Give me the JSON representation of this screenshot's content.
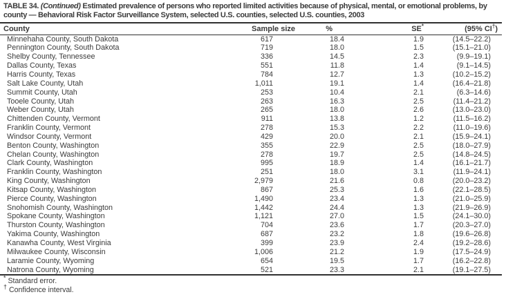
{
  "title": {
    "prefix": "TABLE 34. ",
    "continued": "(Continued)",
    "rest": " Estimated prevalence of persons who reported limited activities because of physical, mental, or emotional problems, by county — Behavioral Risk Factor Surveillance System, selected U.S. counties, selected U.S. counties, 2003"
  },
  "table": {
    "columns": {
      "county": "County",
      "sample_size": "Sample size",
      "percent": "%",
      "se_label": "SE",
      "se_sup": "*",
      "ci_pre": "(95% CI",
      "ci_sup": "†",
      "ci_post": ")"
    },
    "rows": [
      {
        "county": "Minnehaha County, South Dakota",
        "sample_size": "617",
        "percent": "18.4",
        "se": "1.9",
        "ci": "(14.5–22.2)"
      },
      {
        "county": "Pennington County, South Dakota",
        "sample_size": "719",
        "percent": "18.0",
        "se": "1.5",
        "ci": "(15.1–21.0)"
      },
      {
        "county": "Shelby County, Tennessee",
        "sample_size": "336",
        "percent": "14.5",
        "se": "2.3",
        "ci": "(9.9–19.1)"
      },
      {
        "county": "Dallas County, Texas",
        "sample_size": "551",
        "percent": "11.8",
        "se": "1.4",
        "ci": "(9.1–14.5)"
      },
      {
        "county": "Harris County, Texas",
        "sample_size": "784",
        "percent": "12.7",
        "se": "1.3",
        "ci": "(10.2–15.2)"
      },
      {
        "county": "Salt Lake County, Utah",
        "sample_size": "1,011",
        "percent": "19.1",
        "se": "1.4",
        "ci": "(16.4–21.8)"
      },
      {
        "county": "Summit County, Utah",
        "sample_size": "253",
        "percent": "10.4",
        "se": "2.1",
        "ci": "(6.3–14.6)"
      },
      {
        "county": "Tooele County, Utah",
        "sample_size": "263",
        "percent": "16.3",
        "se": "2.5",
        "ci": "(11.4–21.2)"
      },
      {
        "county": "Weber County, Utah",
        "sample_size": "265",
        "percent": "18.0",
        "se": "2.6",
        "ci": "(13.0–23.0)"
      },
      {
        "county": "Chittenden County, Vermont",
        "sample_size": "911",
        "percent": "13.8",
        "se": "1.2",
        "ci": "(11.5–16.2)"
      },
      {
        "county": "Franklin County, Vermont",
        "sample_size": "278",
        "percent": "15.3",
        "se": "2.2",
        "ci": "(11.0–19.6)"
      },
      {
        "county": "Windsor County, Vermont",
        "sample_size": "429",
        "percent": "20.0",
        "se": "2.1",
        "ci": "(15.9–24.1)"
      },
      {
        "county": "Benton County, Washington",
        "sample_size": "355",
        "percent": "22.9",
        "se": "2.5",
        "ci": "(18.0–27.9)"
      },
      {
        "county": "Chelan County, Washington",
        "sample_size": "278",
        "percent": "19.7",
        "se": "2.5",
        "ci": "(14.8–24.5)"
      },
      {
        "county": "Clark County, Washington",
        "sample_size": "995",
        "percent": "18.9",
        "se": "1.4",
        "ci": "(16.1–21.7)"
      },
      {
        "county": "Franklin County, Washington",
        "sample_size": "251",
        "percent": "18.0",
        "se": "3.1",
        "ci": "(11.9–24.1)"
      },
      {
        "county": "King County, Washington",
        "sample_size": "2,979",
        "percent": "21.6",
        "se": "0.8",
        "ci": "(20.0–23.2)"
      },
      {
        "county": "Kitsap County, Washington",
        "sample_size": "867",
        "percent": "25.3",
        "se": "1.6",
        "ci": "(22.1–28.5)"
      },
      {
        "county": "Pierce County, Washington",
        "sample_size": "1,490",
        "percent": "23.4",
        "se": "1.3",
        "ci": "(21.0–25.9)"
      },
      {
        "county": "Snohomish County, Washington",
        "sample_size": "1,442",
        "percent": "24.4",
        "se": "1.3",
        "ci": "(21.9–26.9)"
      },
      {
        "county": "Spokane County, Washington",
        "sample_size": "1,121",
        "percent": "27.0",
        "se": "1.5",
        "ci": "(24.1–30.0)"
      },
      {
        "county": "Thurston County, Washington",
        "sample_size": "704",
        "percent": "23.6",
        "se": "1.7",
        "ci": "(20.3–27.0)"
      },
      {
        "county": "Yakima County, Washington",
        "sample_size": "687",
        "percent": "23.2",
        "se": "1.8",
        "ci": "(19.6–26.8)"
      },
      {
        "county": "Kanawha County, West Virginia",
        "sample_size": "399",
        "percent": "23.9",
        "se": "2.4",
        "ci": "(19.2–28.6)"
      },
      {
        "county": "Milwaukee County, Wisconsin",
        "sample_size": "1,006",
        "percent": "21.2",
        "se": "1.9",
        "ci": "(17.5–24.9)"
      },
      {
        "county": "Laramie County, Wyoming",
        "sample_size": "654",
        "percent": "19.5",
        "se": "1.7",
        "ci": "(16.2–22.8)"
      },
      {
        "county": "Natrona County, Wyoming",
        "sample_size": "521",
        "percent": "23.3",
        "se": "2.1",
        "ci": "(19.1–27.5)"
      }
    ]
  },
  "footnotes": [
    {
      "marker": "*",
      "text": "Standard error."
    },
    {
      "marker": "†",
      "text": "Confidence interval."
    }
  ]
}
